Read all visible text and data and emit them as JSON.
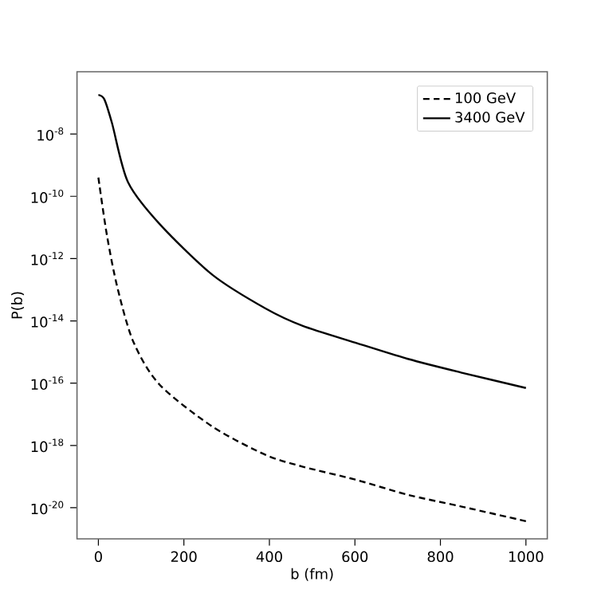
{
  "chart_data": {
    "type": "line",
    "xlabel": "b (fm)",
    "ylabel": "P(b)",
    "log": "y",
    "legend": "top right",
    "xlim": [
      -50,
      1050
    ],
    "ylim": [
      1e-21,
      1e-06
    ],
    "xticks": [
      0,
      200,
      400,
      600,
      800,
      1000
    ],
    "yticks": [
      {
        "value": 1e-20,
        "label": "10$^{-20}$"
      },
      {
        "value": 1e-18,
        "label": "10$^{-18}$"
      },
      {
        "value": 1e-16,
        "label": "10$^{-16}$"
      },
      {
        "value": 1e-14,
        "label": "10$^{-14}$"
      },
      {
        "value": 1e-12,
        "label": "10$^{-12}$"
      },
      {
        "value": 1e-10,
        "label": "10$^{-10}$"
      },
      {
        "value": 1e-08,
        "label": "10$^{-8}$"
      }
    ],
    "series": [
      {
        "name": "100 GeV",
        "color": "#000000",
        "line_style": "dashed",
        "x": [
          0,
          20,
          45,
          82,
          143,
          267,
          391,
          477,
          601,
          724,
          848,
          1000
        ],
        "values": [
          4e-10,
          5.6e-12,
          1.1e-13,
          2.1e-15,
          9e-17,
          4e-18,
          5e-19,
          2.1e-19,
          8e-20,
          2.6e-20,
          1.1e-20,
          3.7e-21
        ]
      },
      {
        "name": "3400 GeV",
        "color": "#000000",
        "line_style": "solid",
        "x": [
          0,
          14,
          32,
          69,
          143,
          267,
          391,
          477,
          601,
          724,
          848,
          1000
        ],
        "values": [
          1.8e-07,
          1.3e-07,
          2.2e-08,
          2.9e-10,
          1.3e-11,
          3e-13,
          2.5e-14,
          7e-15,
          2e-15,
          6e-16,
          2.2e-16,
          7e-17
        ]
      }
    ]
  }
}
